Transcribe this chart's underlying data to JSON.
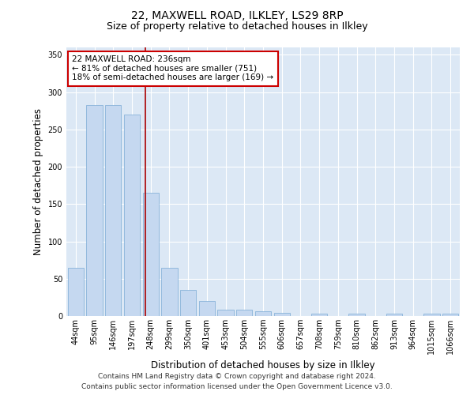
{
  "title_line1": "22, MAXWELL ROAD, ILKLEY, LS29 8RP",
  "title_line2": "Size of property relative to detached houses in Ilkley",
  "xlabel": "Distribution of detached houses by size in Ilkley",
  "ylabel": "Number of detached properties",
  "categories": [
    "44sqm",
    "95sqm",
    "146sqm",
    "197sqm",
    "248sqm",
    "299sqm",
    "350sqm",
    "401sqm",
    "453sqm",
    "504sqm",
    "555sqm",
    "606sqm",
    "657sqm",
    "708sqm",
    "759sqm",
    "810sqm",
    "862sqm",
    "913sqm",
    "964sqm",
    "1015sqm",
    "1066sqm"
  ],
  "values": [
    65,
    283,
    283,
    270,
    165,
    65,
    35,
    20,
    8,
    9,
    6,
    4,
    0,
    3,
    0,
    3,
    0,
    3,
    0,
    3,
    3
  ],
  "bar_color": "#c5d8f0",
  "bar_edge_color": "#7aaad4",
  "vline_color": "#aa0000",
  "vline_x": 3.7,
  "annotation_text": "22 MAXWELL ROAD: 236sqm\n← 81% of detached houses are smaller (751)\n18% of semi-detached houses are larger (169) →",
  "annotation_box_facecolor": "#ffffff",
  "annotation_box_edgecolor": "#cc0000",
  "ylim": [
    0,
    360
  ],
  "yticks": [
    0,
    50,
    100,
    150,
    200,
    250,
    300,
    350
  ],
  "figure_facecolor": "#ffffff",
  "plot_facecolor": "#dce8f5",
  "grid_color": "#ffffff",
  "title1_fontsize": 10,
  "title2_fontsize": 9,
  "axis_label_fontsize": 8.5,
  "tick_fontsize": 7,
  "annotation_fontsize": 7.5,
  "footnote_fontsize": 6.5,
  "footnote1": "Contains HM Land Registry data © Crown copyright and database right 2024.",
  "footnote2": "Contains public sector information licensed under the Open Government Licence v3.0."
}
